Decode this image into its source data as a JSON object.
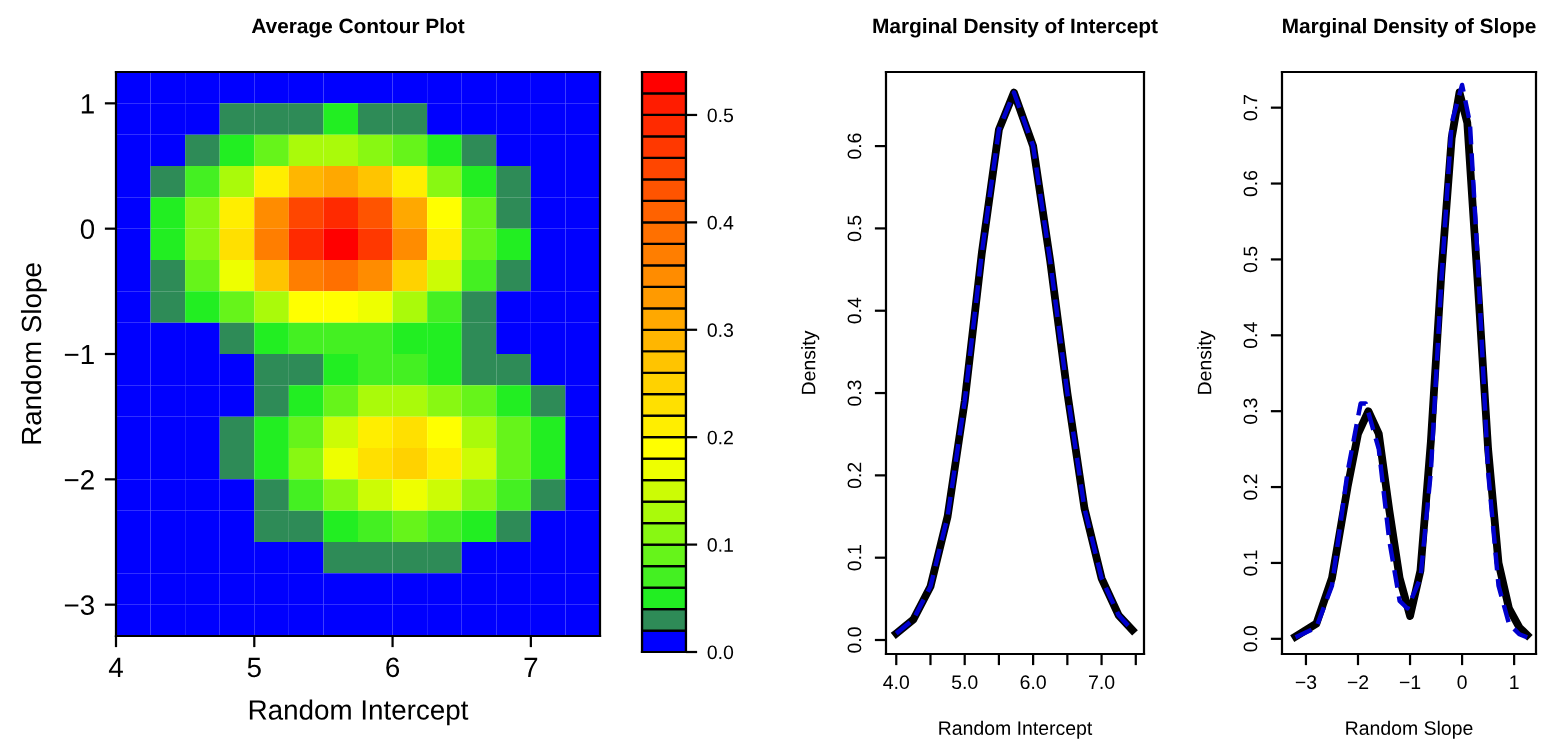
{
  "chart_data": [
    {
      "type": "heatmap",
      "title": "Average Contour Plot",
      "xlabel": "Random Intercept",
      "ylabel": "Random Slope",
      "xlim": [
        4,
        7.5
      ],
      "ylim": [
        -3.25,
        1.25
      ],
      "xticks": [
        4,
        5,
        6,
        7
      ],
      "yticks": [
        {
          "value": -3,
          "label": "−3"
        },
        {
          "value": -2,
          "label": "−2"
        },
        {
          "value": -1,
          "label": "−1"
        },
        0,
        1
      ],
      "clim": [
        0,
        0.54
      ],
      "cticks": [
        {
          "value": 0,
          "label": "0.0"
        },
        0.1,
        0.2,
        0.3,
        0.4,
        0.5
      ],
      "colors": [
        "#0000ff",
        "#2e8b57",
        "#22ee22",
        "#44f022",
        "#66f41a",
        "#88f812",
        "#aafa0a",
        "#ccfc05",
        "#eeff00",
        "#ffff00",
        "#ffee00",
        "#ffe000",
        "#ffd200",
        "#ffc400",
        "#ffb600",
        "#ffa800",
        "#ff9a00",
        "#ff8c00",
        "#ff7e00",
        "#ff7000",
        "#ff6200",
        "#ff5400",
        "#ff4600",
        "#ff3800",
        "#ff2a00",
        "#ff1c00",
        "#ff0000"
      ],
      "cells": [
        [
          0,
          0,
          0,
          0,
          0,
          0.01,
          0.01,
          0.01,
          0,
          0,
          0,
          0,
          0,
          0
        ],
        [
          0,
          0,
          0.01,
          0.02,
          0.03,
          0.03,
          0.04,
          0.03,
          0.02,
          0.01,
          0.01,
          0,
          0,
          0
        ],
        [
          0,
          0.01,
          0.03,
          0.05,
          0.09,
          0.12,
          0.13,
          0.11,
          0.08,
          0.05,
          0.02,
          0.01,
          0,
          0
        ],
        [
          0.01,
          0.03,
          0.06,
          0.13,
          0.21,
          0.28,
          0.31,
          0.27,
          0.2,
          0.11,
          0.05,
          0.02,
          0.01,
          0
        ],
        [
          0.01,
          0.04,
          0.1,
          0.21,
          0.34,
          0.45,
          0.49,
          0.43,
          0.31,
          0.18,
          0.09,
          0.03,
          0.01,
          0
        ],
        [
          0.01,
          0.04,
          0.11,
          0.22,
          0.37,
          0.49,
          0.53,
          0.47,
          0.34,
          0.2,
          0.09,
          0.04,
          0.01,
          0
        ],
        [
          0.01,
          0.03,
          0.08,
          0.16,
          0.27,
          0.36,
          0.39,
          0.34,
          0.25,
          0.14,
          0.07,
          0.03,
          0.01,
          0
        ],
        [
          0.01,
          0.02,
          0.04,
          0.08,
          0.13,
          0.18,
          0.19,
          0.17,
          0.12,
          0.07,
          0.03,
          0.01,
          0,
          0
        ],
        [
          0,
          0.01,
          0.01,
          0.03,
          0.05,
          0.07,
          0.07,
          0.07,
          0.05,
          0.04,
          0.02,
          0.01,
          0,
          0
        ],
        [
          0,
          0,
          0,
          0.01,
          0.02,
          0.03,
          0.05,
          0.06,
          0.06,
          0.05,
          0.03,
          0.02,
          0.01,
          0
        ],
        [
          0,
          0,
          0,
          0.01,
          0.03,
          0.05,
          0.09,
          0.12,
          0.13,
          0.11,
          0.08,
          0.05,
          0.02,
          0.01
        ],
        [
          0,
          0,
          0.01,
          0.02,
          0.04,
          0.09,
          0.15,
          0.2,
          0.22,
          0.19,
          0.13,
          0.08,
          0.04,
          0.01
        ],
        [
          0,
          0,
          0.01,
          0.02,
          0.05,
          0.1,
          0.16,
          0.22,
          0.24,
          0.21,
          0.15,
          0.08,
          0.04,
          0.01
        ],
        [
          0,
          0,
          0,
          0.01,
          0.03,
          0.07,
          0.11,
          0.15,
          0.17,
          0.15,
          0.1,
          0.06,
          0.03,
          0.01
        ],
        [
          0,
          0,
          0,
          0.01,
          0.02,
          0.03,
          0.05,
          0.07,
          0.08,
          0.07,
          0.05,
          0.03,
          0.01,
          0
        ],
        [
          0,
          0,
          0,
          0,
          0,
          0.01,
          0.02,
          0.02,
          0.02,
          0.02,
          0.01,
          0.01,
          0,
          0
        ],
        [
          0,
          0,
          0,
          0,
          0,
          0,
          0,
          0,
          0,
          0,
          0,
          0,
          0,
          0
        ],
        [
          0,
          0,
          0,
          0,
          0,
          0,
          0,
          0,
          0,
          0,
          0,
          0,
          0,
          0
        ]
      ]
    },
    {
      "type": "line",
      "title": "Marginal Density of Intercept",
      "xlabel": "Random Intercept",
      "ylabel": "Density",
      "xlim": [
        3.85,
        7.62
      ],
      "ylim": [
        -0.017,
        0.69
      ],
      "xticks": [
        {
          "value": 4,
          "label": "4.0"
        },
        {
          "value": 4.5,
          "label": null
        },
        {
          "value": 5,
          "label": "5.0"
        },
        {
          "value": 5.5,
          "label": null
        },
        {
          "value": 6,
          "label": "6.0"
        },
        {
          "value": 6.5,
          "label": null
        },
        {
          "value": 7,
          "label": "7.0"
        },
        {
          "value": 7.5,
          "label": null
        }
      ],
      "yticks": [
        {
          "value": 0,
          "label": "0.0"
        },
        0.1,
        0.2,
        0.3,
        0.4,
        0.5,
        0.6
      ],
      "series": [
        {
          "color": "#000000",
          "line_style": "solid",
          "x": [
            4.0,
            4.25,
            4.5,
            4.75,
            5.0,
            5.25,
            5.5,
            5.72,
            6.0,
            6.25,
            6.5,
            6.75,
            7.0,
            7.25,
            7.45
          ],
          "values": [
            0.008,
            0.025,
            0.065,
            0.15,
            0.29,
            0.47,
            0.62,
            0.665,
            0.6,
            0.46,
            0.3,
            0.16,
            0.075,
            0.03,
            0.012
          ]
        },
        {
          "color": "#0000cd",
          "line_style": "dashed",
          "x": [
            4.0,
            4.25,
            4.5,
            4.75,
            5.0,
            5.25,
            5.5,
            5.72,
            6.0,
            6.25,
            6.5,
            6.75,
            7.0,
            7.25,
            7.45
          ],
          "values": [
            0.008,
            0.025,
            0.065,
            0.15,
            0.29,
            0.47,
            0.62,
            0.665,
            0.6,
            0.46,
            0.3,
            0.16,
            0.075,
            0.03,
            0.012
          ]
        }
      ]
    },
    {
      "type": "line",
      "title": "Marginal Density of Slope",
      "xlabel": "Random Slope",
      "ylabel": "Density",
      "xlim": [
        -3.46,
        1.42
      ],
      "ylim": [
        -0.02,
        0.747
      ],
      "xticks": [
        {
          "value": -3,
          "label": "−3"
        },
        {
          "value": -2,
          "label": "−2"
        },
        {
          "value": -1,
          "label": "−1"
        },
        0,
        1
      ],
      "yticks": [
        {
          "value": 0,
          "label": "0.0"
        },
        0.1,
        0.2,
        0.3,
        0.4,
        0.5,
        0.6,
        0.7
      ],
      "series": [
        {
          "color": "#000000",
          "line_style": "solid",
          "x": [
            -3.2,
            -2.8,
            -2.5,
            -2.2,
            -2.0,
            -1.8,
            -1.6,
            -1.4,
            -1.2,
            -1.0,
            -0.8,
            -0.6,
            -0.4,
            -0.2,
            -0.05,
            0.1,
            0.3,
            0.5,
            0.7,
            0.9,
            1.1,
            1.25
          ],
          "values": [
            0.003,
            0.02,
            0.08,
            0.2,
            0.27,
            0.3,
            0.27,
            0.17,
            0.08,
            0.03,
            0.09,
            0.26,
            0.48,
            0.66,
            0.72,
            0.68,
            0.47,
            0.25,
            0.1,
            0.04,
            0.015,
            0.005
          ]
        },
        {
          "color": "#0000cd",
          "line_style": "dashed",
          "x": [
            -3.2,
            -2.8,
            -2.5,
            -2.2,
            -1.95,
            -1.85,
            -1.6,
            -1.4,
            -1.2,
            -1.05,
            -0.8,
            -0.6,
            -0.4,
            -0.2,
            0.0,
            0.15,
            0.3,
            0.5,
            0.7,
            0.9,
            1.1,
            1.25
          ],
          "values": [
            0.002,
            0.015,
            0.07,
            0.22,
            0.31,
            0.31,
            0.25,
            0.13,
            0.05,
            0.04,
            0.08,
            0.22,
            0.47,
            0.68,
            0.73,
            0.68,
            0.5,
            0.22,
            0.07,
            0.02,
            0.006,
            0.002
          ]
        }
      ]
    }
  ]
}
